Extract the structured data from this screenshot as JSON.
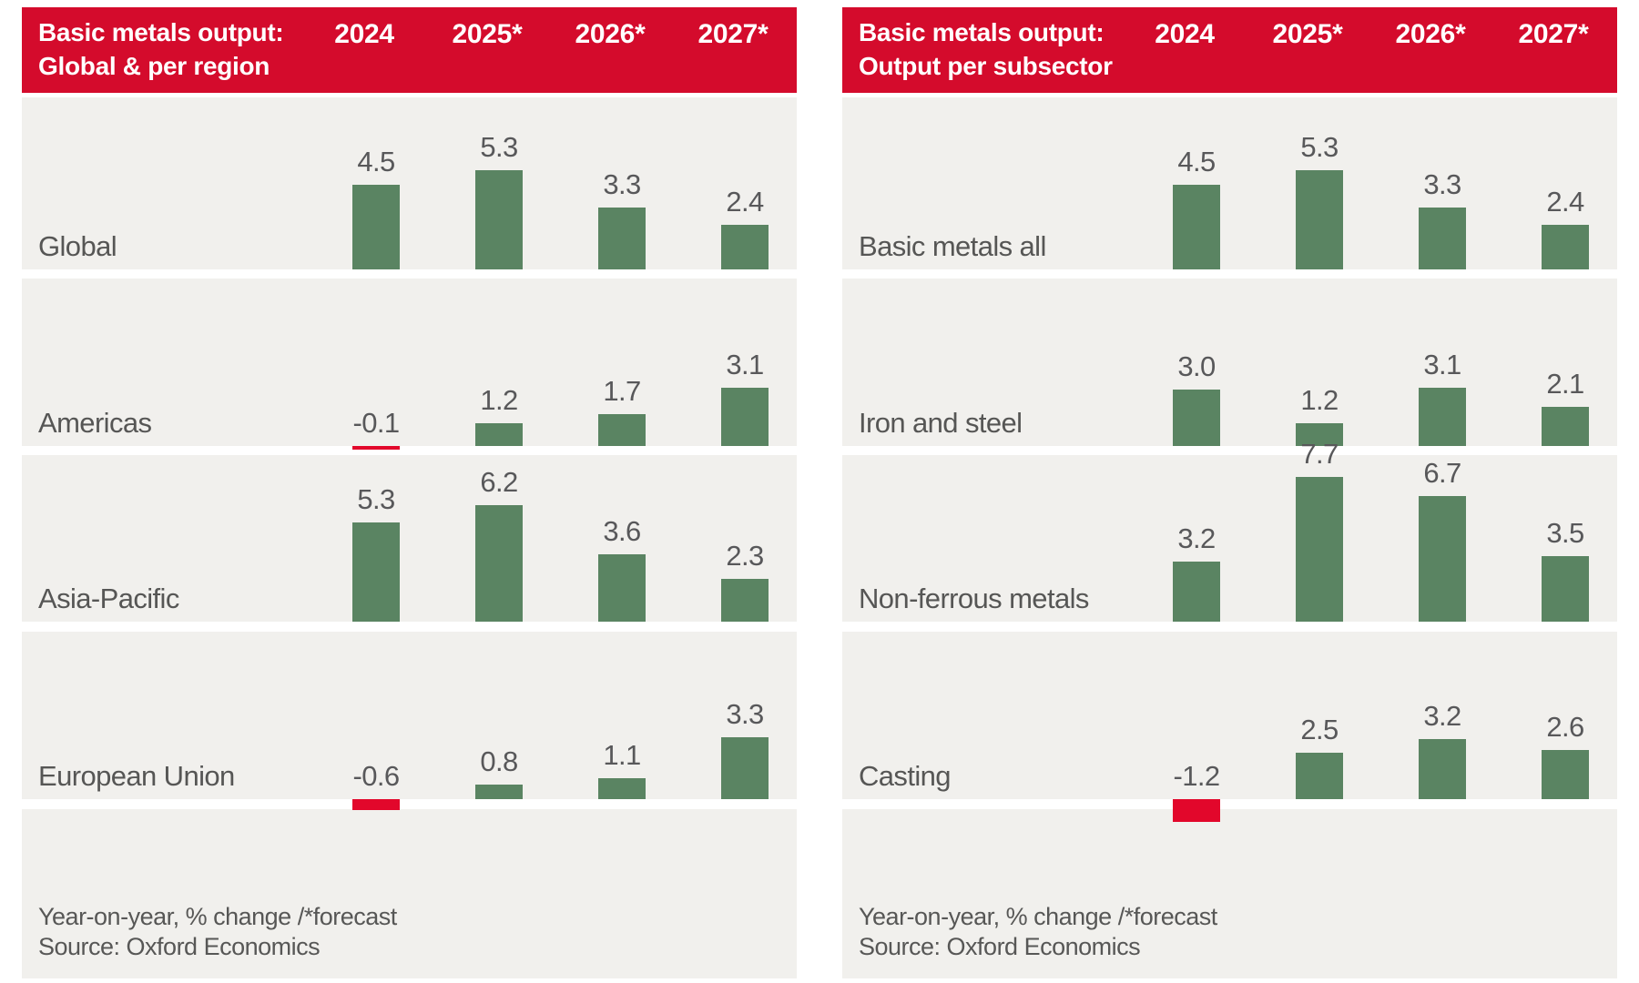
{
  "colors": {
    "header_bg": "#d40b2c",
    "positive_bar": "#5a8462",
    "negative_bar": "#e2072b",
    "band_bg": "#f1f0ed",
    "label_text": "#575756",
    "header_text": "#ffffff"
  },
  "chart_data": [
    {
      "type": "bar",
      "title_line1": "Basic metals output:",
      "title_line2": "Global & per region",
      "categories": [
        "2024",
        "2025*",
        "2026*",
        "2027*"
      ],
      "series": [
        {
          "name": "Global",
          "values": [
            4.5,
            5.3,
            3.3,
            2.4
          ]
        },
        {
          "name": "Americas",
          "values": [
            -0.1,
            1.2,
            1.7,
            3.1
          ]
        },
        {
          "name": "Asia-Pacific",
          "values": [
            5.3,
            6.2,
            3.6,
            2.3
          ]
        },
        {
          "name": "European Union",
          "values": [
            -0.6,
            0.8,
            1.1,
            3.3
          ]
        }
      ],
      "legend": "none",
      "grid": false,
      "note": "Year-on-year, % change /*forecast",
      "source": "Source: Oxford Economics"
    },
    {
      "type": "bar",
      "title_line1": "Basic metals output:",
      "title_line2": "Output per subsector",
      "categories": [
        "2024",
        "2025*",
        "2026*",
        "2027*"
      ],
      "series": [
        {
          "name": "Basic metals all",
          "values": [
            4.5,
            5.3,
            3.3,
            2.4
          ]
        },
        {
          "name": "Iron and steel",
          "values": [
            3.0,
            1.2,
            3.1,
            2.1
          ]
        },
        {
          "name": "Non-ferrous metals",
          "values": [
            3.2,
            7.7,
            6.7,
            3.5
          ]
        },
        {
          "name": "Casting",
          "values": [
            -1.2,
            2.5,
            3.2,
            2.6
          ]
        }
      ],
      "legend": "none",
      "grid": false,
      "note": "Year-on-year, % change /*forecast",
      "source": "Source: Oxford Economics"
    }
  ]
}
